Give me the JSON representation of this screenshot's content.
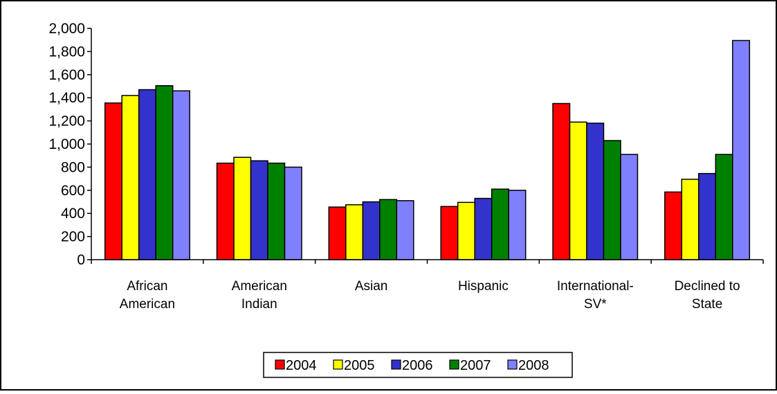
{
  "chart_data": {
    "type": "bar",
    "title": "",
    "xlabel": "",
    "ylabel": "",
    "categories": [
      [
        "African",
        "American"
      ],
      [
        "American",
        "Indian"
      ],
      [
        "Asian"
      ],
      [
        "Hispanic"
      ],
      [
        "International-",
        "SV*"
      ],
      [
        "Declined to",
        "State"
      ]
    ],
    "ylim": [
      0,
      2000
    ],
    "yticks": [
      0,
      200,
      400,
      600,
      800,
      1000,
      1200,
      1400,
      1600,
      1800,
      2000
    ],
    "ytick_labels": [
      "0",
      "200",
      "400",
      "600",
      "800",
      "1,000",
      "1,200",
      "1,400",
      "1,600",
      "1,800",
      "2,000"
    ],
    "grid": false,
    "legend_position": "bottom",
    "series": [
      {
        "name": "2004",
        "color": "#ff0000",
        "values": [
          1355,
          835,
          455,
          460,
          1350,
          585
        ]
      },
      {
        "name": "2005",
        "color": "#ffff00",
        "values": [
          1420,
          885,
          475,
          495,
          1190,
          695
        ]
      },
      {
        "name": "2006",
        "color": "#3333cc",
        "values": [
          1470,
          855,
          500,
          530,
          1180,
          745
        ]
      },
      {
        "name": "2007",
        "color": "#008000",
        "values": [
          1505,
          835,
          520,
          610,
          1030,
          910
        ]
      },
      {
        "name": "2008",
        "color": "#8080ff",
        "values": [
          1460,
          800,
          510,
          600,
          910,
          1895
        ]
      }
    ]
  }
}
